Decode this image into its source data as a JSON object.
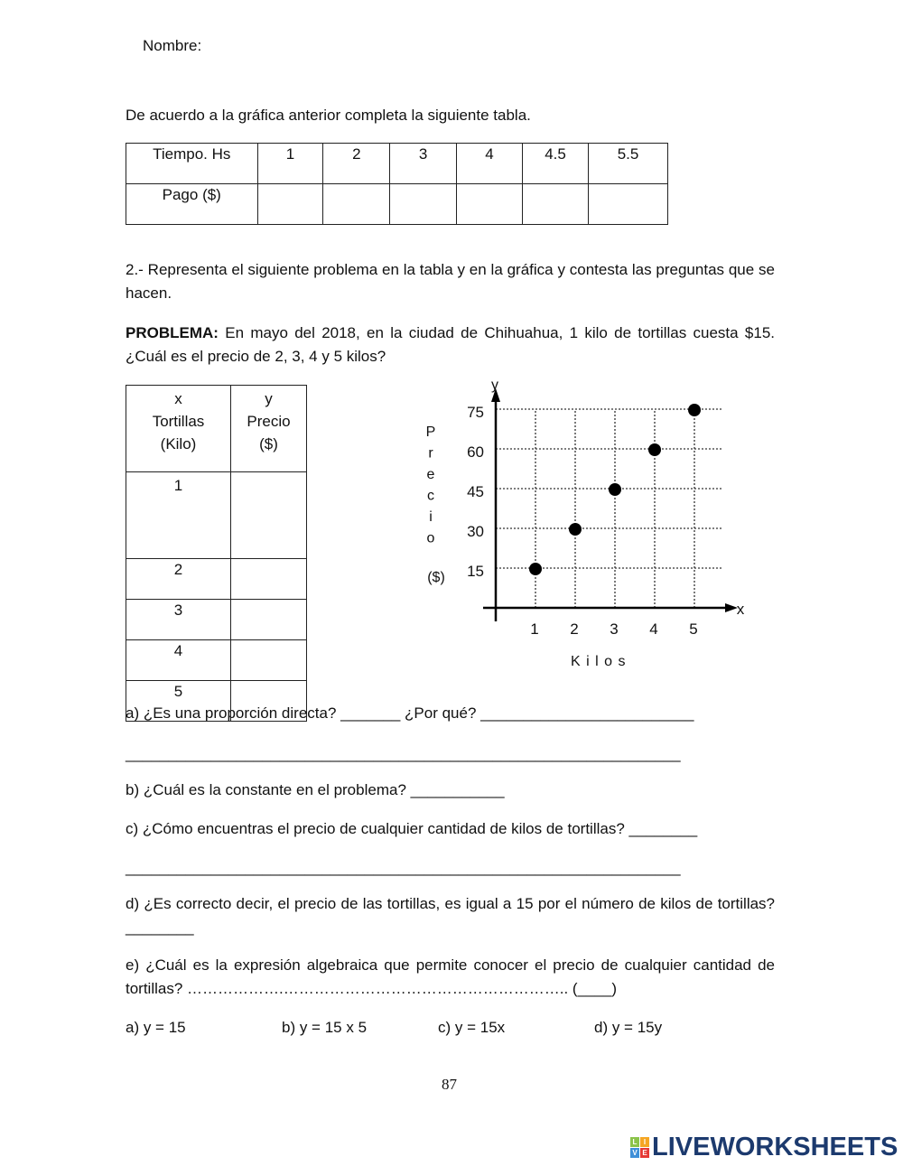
{
  "header": {
    "name_label": "Nombre:"
  },
  "instruction1": "De acuerdo a la gráfica anterior completa la siguiente tabla.",
  "table1": {
    "row1": [
      "Tiempo. Hs",
      "1",
      "2",
      "3",
      "4",
      "4.5",
      "5.5"
    ],
    "row2": [
      "Pago ($)",
      "",
      "",
      "",
      "",
      "",
      ""
    ]
  },
  "instruction2": "2.- Representa el siguiente problema en la tabla y en la gráfica y contesta las preguntas que se hacen.",
  "problem": {
    "label": "PROBLEMA:",
    "text": " En mayo del 2018, en la ciudad de Chihuahua, 1 kilo de tortillas cuesta $15. ¿Cuál es el precio de 2, 3, 4 y 5 kilos?"
  },
  "table2": {
    "headers": [
      [
        "x",
        "Tortillas",
        "(Kilo)"
      ],
      [
        "y",
        "Precio",
        "($)"
      ]
    ],
    "x_values": [
      "1",
      "2",
      "3",
      "4",
      "5"
    ],
    "y_values": [
      "",
      "",
      "",
      "",
      ""
    ]
  },
  "chart_data": {
    "type": "scatter",
    "x": [
      1,
      2,
      3,
      4,
      5
    ],
    "y": [
      15,
      30,
      45,
      60,
      75
    ],
    "x_ticks": [
      "1",
      "2",
      "3",
      "4",
      "5"
    ],
    "y_ticks": [
      "15",
      "30",
      "45",
      "60",
      "75"
    ],
    "x_axis_letter": "x",
    "y_axis_letter": "y",
    "xlabel": "K i l o s",
    "ylabel_letters": [
      "P",
      "r",
      "e",
      "c",
      "i",
      "o"
    ],
    "ylabel_unit": "($)",
    "grid": true,
    "grid_style": "dotted",
    "xlim": [
      0,
      5.5
    ],
    "ylim": [
      0,
      80
    ]
  },
  "questions": {
    "a": "a) ¿Es una proporción directa? _______ ¿Por qué? _________________________",
    "a_line": "_________________________________________________________________",
    "b": "b) ¿Cuál es la constante en el problema? ___________",
    "c": "c) ¿Cómo encuentras el precio de cualquier cantidad de kilos de tortillas? ________",
    "c_line": "_________________________________________________________________",
    "d": "d) ¿Es correcto decir, el precio de las tortillas, es igual a 15 por el número de kilos de tortillas? ________",
    "e": "e) ¿Cuál es la expresión algebraica que permite conocer el precio de cualquier cantidad de tortillas? ……………….……………………………………………….. (____)"
  },
  "options": [
    "a) y = 15",
    "b) y = 15 x 5",
    "c) y = 15x",
    "d) y = 15y"
  ],
  "page_number": "87",
  "logo": {
    "text": "LIVEWORKSHEETS",
    "badge": [
      "L",
      "I",
      "V",
      "E"
    ],
    "colors": [
      "#8bc34a",
      "#f5a623",
      "#3f8fd8",
      "#e53935"
    ]
  }
}
